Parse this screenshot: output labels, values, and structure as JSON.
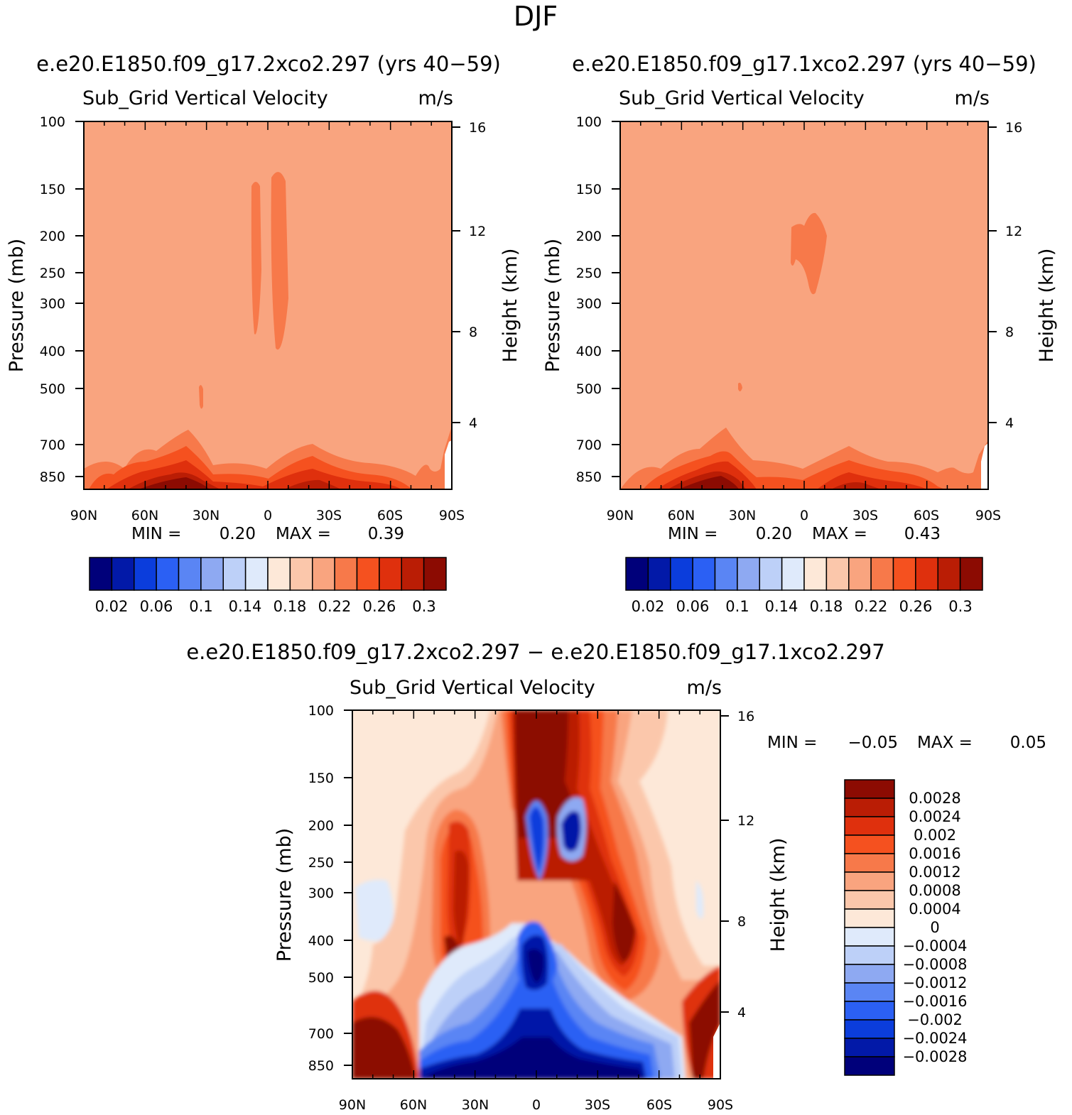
{
  "figure": {
    "title": "DJF"
  },
  "chart_data": [
    {
      "type": "heatmap",
      "title": "e.e20.E1850.f09_g17.2xco2.297 (yrs 40−59)",
      "variable": "Sub_Grid Vertical Velocity",
      "units": "m/s",
      "xlabel": "",
      "ylabel": "Pressure (mb)",
      "y2label": "Height (km)",
      "x_ticks": [
        "90N",
        "60N",
        "30N",
        "0",
        "30S",
        "60S",
        "90S"
      ],
      "y_ticks": [
        "100",
        "150",
        "200",
        "250",
        "300",
        "400",
        "500",
        "700",
        "850"
      ],
      "y2_ticks": [
        "16",
        "12",
        "8",
        "4"
      ],
      "min_label": "MIN =",
      "min_value": "0.20",
      "max_label": "MAX =",
      "max_value": "0.39",
      "colorbar_labels": [
        "0.02",
        "0.06",
        "0.1",
        "0.14",
        "0.18",
        "0.22",
        "0.26",
        "0.3"
      ],
      "colorbar_colors": [
        "#00007a",
        "#0219a8",
        "#0b3ddc",
        "#2b60f4",
        "#5a85f4",
        "#8ea9f2",
        "#bdd0f8",
        "#dfeafb",
        "#fde8d8",
        "#fbc7ab",
        "#f9a47f",
        "#f7794a",
        "#f5511f",
        "#df300d",
        "#ba1d05",
        "#8c0b02"
      ]
    },
    {
      "type": "heatmap",
      "title": "e.e20.E1850.f09_g17.1xco2.297 (yrs 40−59)",
      "variable": "Sub_Grid Vertical Velocity",
      "units": "m/s",
      "xlabel": "",
      "ylabel": "Pressure (mb)",
      "y2label": "Height (km)",
      "x_ticks": [
        "90N",
        "60N",
        "30N",
        "0",
        "30S",
        "60S",
        "90S"
      ],
      "y_ticks": [
        "100",
        "150",
        "200",
        "250",
        "300",
        "400",
        "500",
        "700",
        "850"
      ],
      "y2_ticks": [
        "16",
        "12",
        "8",
        "4"
      ],
      "min_label": "MIN =",
      "min_value": "0.20",
      "max_label": "MAX =",
      "max_value": "0.43",
      "colorbar_labels": [
        "0.02",
        "0.06",
        "0.1",
        "0.14",
        "0.18",
        "0.22",
        "0.26",
        "0.3"
      ],
      "colorbar_colors": [
        "#00007a",
        "#0219a8",
        "#0b3ddc",
        "#2b60f4",
        "#5a85f4",
        "#8ea9f2",
        "#bdd0f8",
        "#dfeafb",
        "#fde8d8",
        "#fbc7ab",
        "#f9a47f",
        "#f7794a",
        "#f5511f",
        "#df300d",
        "#ba1d05",
        "#8c0b02"
      ]
    },
    {
      "type": "heatmap",
      "title": "e.e20.E1850.f09_g17.2xco2.297 − e.e20.E1850.f09_g17.1xco2.297",
      "variable": "Sub_Grid Vertical Velocity",
      "units": "m/s",
      "xlabel": "",
      "ylabel": "Pressure (mb)",
      "y2label": "Height (km)",
      "x_ticks": [
        "90N",
        "60N",
        "30N",
        "0",
        "30S",
        "60S",
        "90S"
      ],
      "y_ticks": [
        "100",
        "150",
        "200",
        "250",
        "300",
        "400",
        "500",
        "700",
        "850"
      ],
      "y2_ticks": [
        "16",
        "12",
        "8",
        "4"
      ],
      "min_label": "MIN =",
      "min_value": "−0.05",
      "max_label": "MAX =",
      "max_value": "0.05",
      "colorbar_labels": [
        "0.0028",
        "0.0024",
        "0.002",
        "0.0016",
        "0.0012",
        "0.0008",
        "0.0004",
        "0",
        "−0.0004",
        "−0.0008",
        "−0.0012",
        "−0.0016",
        "−0.002",
        "−0.0024",
        "−0.0028"
      ],
      "colorbar_colors": [
        "#8c0b02",
        "#ba1d05",
        "#df300d",
        "#f5511f",
        "#f7794a",
        "#f9a47f",
        "#fbc7ab",
        "#fde8d8",
        "#dfeafb",
        "#bdd0f8",
        "#8ea9f2",
        "#5a85f4",
        "#2b60f4",
        "#0b3ddc",
        "#0219a8",
        "#00007a"
      ]
    }
  ]
}
